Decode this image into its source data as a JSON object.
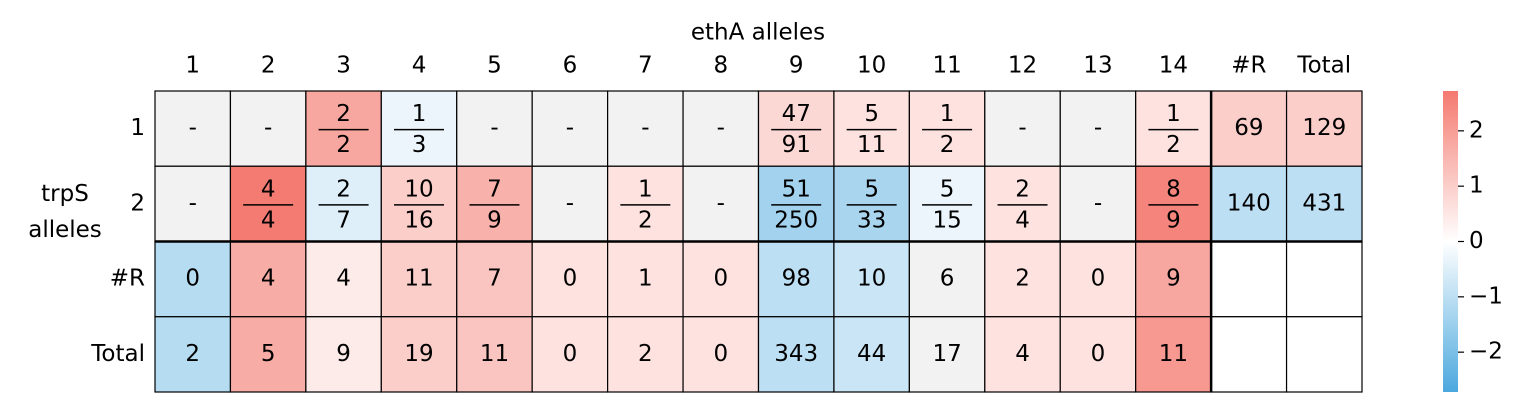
{
  "chart_data": {
    "type": "heatmap",
    "xlabel": "ethA alleles",
    "ylabel": "trpS alleles",
    "columns": [
      "1",
      "2",
      "3",
      "4",
      "5",
      "6",
      "7",
      "8",
      "9",
      "10",
      "11",
      "12",
      "13",
      "14",
      "#R",
      "Total"
    ],
    "rows": [
      "1",
      "2",
      "#R",
      "Total"
    ],
    "cells": [
      [
        "-",
        "-",
        {
          "num": 2,
          "den": 2
        },
        {
          "num": 1,
          "den": 3
        },
        "-",
        "-",
        "-",
        "-",
        {
          "num": 47,
          "den": 91
        },
        {
          "num": 5,
          "den": 11
        },
        {
          "num": 1,
          "den": 2
        },
        "-",
        "-",
        {
          "num": 1,
          "den": 2
        },
        69,
        129
      ],
      [
        "-",
        {
          "num": 4,
          "den": 4
        },
        {
          "num": 2,
          "den": 7
        },
        {
          "num": 10,
          "den": 16
        },
        {
          "num": 7,
          "den": 9
        },
        "-",
        {
          "num": 1,
          "den": 2
        },
        "-",
        {
          "num": 51,
          "den": 250
        },
        {
          "num": 5,
          "den": 33
        },
        {
          "num": 5,
          "den": 15
        },
        {
          "num": 2,
          "den": 4
        },
        "-",
        {
          "num": 8,
          "den": 9
        },
        140,
        431
      ],
      [
        0,
        4,
        4,
        11,
        7,
        0,
        1,
        0,
        98,
        10,
        6,
        2,
        0,
        9,
        null,
        null
      ],
      [
        2,
        5,
        9,
        19,
        11,
        0,
        2,
        0,
        343,
        44,
        17,
        4,
        0,
        11,
        null,
        null
      ]
    ],
    "values": [
      [
        null,
        null,
        1.8,
        -0.3,
        null,
        null,
        null,
        null,
        0.8,
        0.6,
        0.6,
        null,
        null,
        0.6,
        1.0,
        1.0
      ],
      [
        null,
        2.7,
        -0.5,
        1.0,
        1.6,
        null,
        0.6,
        null,
        -1.4,
        -1.3,
        -0.3,
        0.6,
        null,
        2.5,
        -1.0,
        -1.0
      ],
      [
        -1.1,
        1.7,
        0.4,
        1.0,
        1.2,
        0.6,
        0.6,
        0.6,
        -1.0,
        -0.8,
        null,
        0.6,
        0.6,
        1.8,
        null,
        null
      ],
      [
        -1.1,
        1.7,
        0.4,
        1.0,
        1.2,
        0.6,
        0.6,
        0.6,
        -1.0,
        -0.8,
        null,
        0.6,
        0.6,
        2.1,
        null,
        null
      ]
    ],
    "zlim": [
      -2.72,
      2.72
    ],
    "zticks": [
      {
        "value": -2,
        "label": "−2"
      },
      {
        "value": -1,
        "label": "−1"
      },
      0,
      1,
      2
    ],
    "cmap": [
      "#4ba8de",
      "#ffffff",
      "#f47a70"
    ],
    "nan_color": "#f2f2f2"
  }
}
